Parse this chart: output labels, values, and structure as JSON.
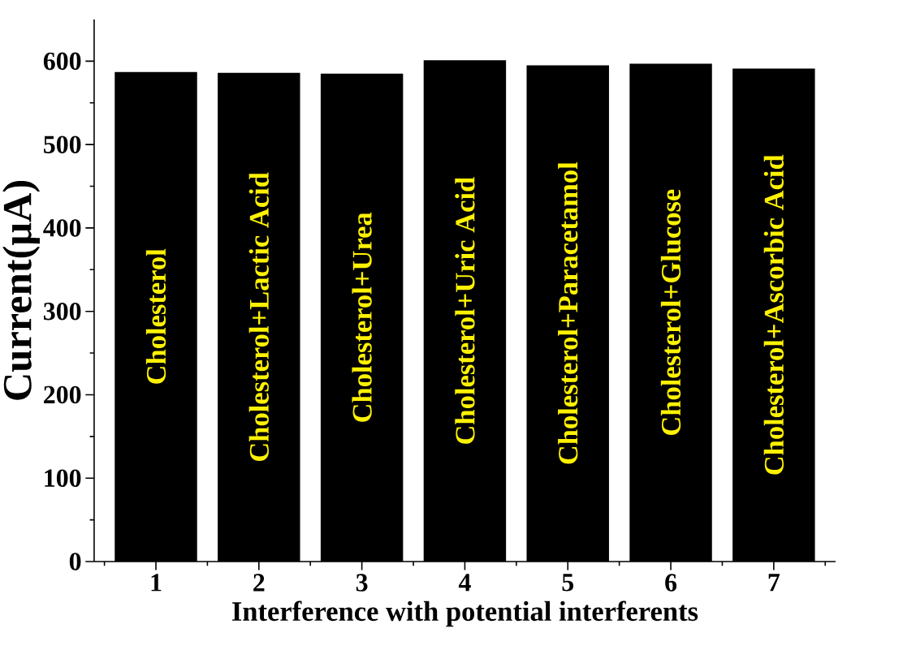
{
  "chart_data": {
    "type": "bar",
    "xlabel": "Interference with potential interferents",
    "ylabel": "Current(μA)",
    "categories": [
      "1",
      "2",
      "3",
      "4",
      "5",
      "6",
      "7"
    ],
    "values": [
      587,
      586,
      585,
      601,
      595,
      597,
      591
    ],
    "color": "#000000",
    "ylim": [
      0,
      650
    ],
    "yticks": [
      0,
      100,
      200,
      300,
      400,
      500,
      600
    ],
    "grid": false,
    "annotations": [
      "Cholesterol",
      "Cholesterol+Lactic Acid",
      "Cholesterol+Urea",
      "Cholesterol+Uric Acid",
      "Cholesterol+Paracetamol",
      "Cholesterol+Glucose",
      "Cholesterol+Ascorbic Acid"
    ]
  }
}
